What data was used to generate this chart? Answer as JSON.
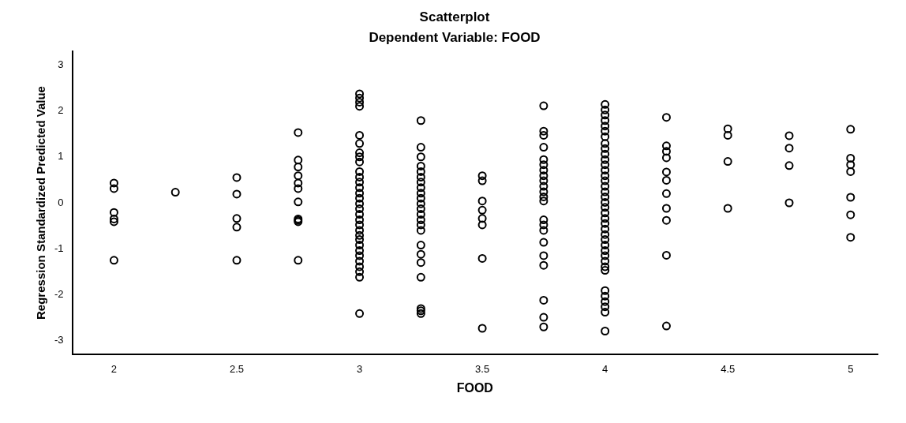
{
  "chart_data": {
    "type": "scatter",
    "title": "Scatterplot",
    "subtitle": "Dependent Variable: FOOD",
    "xlabel": "FOOD",
    "ylabel": "Regression Standardized Predicted Value",
    "xlim": [
      1.83,
      5.11
    ],
    "xticks": [
      2,
      2.5,
      3,
      3.5,
      4,
      4.5,
      5
    ],
    "ylim": [
      -3.3,
      3.3
    ],
    "yticks": [
      -3,
      -2,
      -1,
      0,
      1,
      2,
      3
    ],
    "grid": false,
    "legend": false,
    "marker": "circle",
    "series": [
      {
        "color": "#000000",
        "x": [
          2,
          2,
          2,
          2,
          2,
          2,
          2.25,
          2.5,
          2.5,
          2.5,
          2.5,
          2.5,
          2.75,
          2.75,
          2.75,
          2.75,
          2.75,
          2.75,
          2.75,
          2.75,
          2.75,
          2.75,
          2.75,
          3,
          3,
          3,
          3,
          3,
          3,
          3,
          3,
          3,
          3,
          3,
          3,
          3,
          3,
          3,
          3,
          3,
          3,
          3,
          3,
          3,
          3,
          3,
          3,
          3,
          3,
          3,
          3,
          3,
          3,
          3,
          3.25,
          3.25,
          3.25,
          3.25,
          3.25,
          3.25,
          3.25,
          3.25,
          3.25,
          3.25,
          3.25,
          3.25,
          3.25,
          3.25,
          3.25,
          3.25,
          3.25,
          3.25,
          3.25,
          3.25,
          3.25,
          3.25,
          3.25,
          3.5,
          3.5,
          3.5,
          3.5,
          3.5,
          3.5,
          3.5,
          3.5,
          3.75,
          3.75,
          3.75,
          3.75,
          3.75,
          3.75,
          3.75,
          3.75,
          3.75,
          3.75,
          3.75,
          3.75,
          3.75,
          3.75,
          3.75,
          3.75,
          3.75,
          3.75,
          3.75,
          3.75,
          3.75,
          3.75,
          4,
          4,
          4,
          4,
          4,
          4,
          4,
          4,
          4,
          4,
          4,
          4,
          4,
          4,
          4,
          4,
          4,
          4,
          4,
          4,
          4,
          4,
          4,
          4,
          4,
          4,
          4,
          4,
          4,
          4,
          4,
          4,
          4,
          4,
          4,
          4,
          4,
          4,
          4.25,
          4.25,
          4.25,
          4.25,
          4.25,
          4.25,
          4.25,
          4.25,
          4.25,
          4.25,
          4.25,
          4.5,
          4.5,
          4.5,
          4.5,
          4.75,
          4.75,
          4.75,
          4.75,
          5,
          5,
          5,
          5,
          5,
          5,
          5
        ],
        "values": [
          0.43,
          0.31,
          -0.21,
          -0.35,
          -0.41,
          -1.25,
          0.23,
          0.55,
          0.19,
          -0.34,
          -0.53,
          -1.25,
          1.53,
          0.93,
          0.78,
          0.59,
          0.43,
          0.31,
          0.02,
          -0.35,
          -0.38,
          -0.41,
          -1.25,
          2.37,
          2.28,
          2.19,
          2.1,
          1.47,
          1.29,
          1.09,
          1.0,
          0.89,
          0.68,
          0.56,
          0.45,
          0.33,
          0.21,
          0.1,
          -0.02,
          -0.13,
          -0.25,
          -0.37,
          -0.48,
          -0.6,
          -0.71,
          -0.8,
          -0.92,
          -1.04,
          -1.15,
          -1.27,
          -1.39,
          -1.5,
          -1.62,
          -2.41,
          1.79,
          1.21,
          1.0,
          0.8,
          0.68,
          0.56,
          0.45,
          0.33,
          0.21,
          0.1,
          -0.02,
          -0.13,
          -0.25,
          -0.37,
          -0.48,
          -0.6,
          -0.92,
          -1.12,
          -1.3,
          -1.62,
          -2.3,
          -2.35,
          -2.41,
          0.59,
          0.48,
          0.04,
          -0.16,
          -0.34,
          -0.48,
          -1.21,
          -2.73,
          2.11,
          1.56,
          1.47,
          1.21,
          0.94,
          0.83,
          0.71,
          0.59,
          0.48,
          0.36,
          0.24,
          0.13,
          0.04,
          -0.37,
          -0.48,
          -0.6,
          -0.86,
          -1.15,
          -1.36,
          -2.12,
          -2.49,
          -2.7,
          2.14,
          2.02,
          1.91,
          1.79,
          1.67,
          1.56,
          1.44,
          1.29,
          1.18,
          1.06,
          0.94,
          0.83,
          0.71,
          0.59,
          0.48,
          0.36,
          0.24,
          0.13,
          0.01,
          -0.1,
          -0.22,
          -0.34,
          -0.45,
          -0.57,
          -0.69,
          -0.8,
          -0.92,
          -1.04,
          -1.15,
          -1.27,
          -1.39,
          -1.47,
          -1.91,
          -2.03,
          -2.15,
          -2.26,
          -2.38,
          -2.79,
          1.86,
          1.24,
          1.12,
          0.98,
          0.67,
          0.49,
          0.2,
          -0.12,
          -0.38,
          -1.14,
          -2.68,
          1.61,
          1.47,
          0.9,
          -0.12,
          1.46,
          1.19,
          0.81,
          0.0,
          1.6,
          0.97,
          0.83,
          0.68,
          0.12,
          -0.26,
          -0.75
        ]
      }
    ]
  }
}
